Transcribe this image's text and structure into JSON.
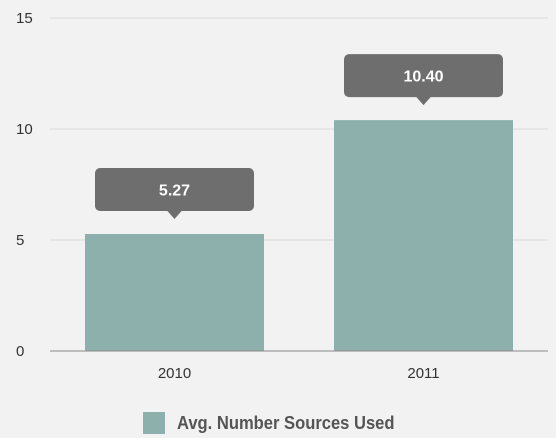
{
  "chart_data": {
    "type": "bar",
    "categories": [
      "2010",
      "2011"
    ],
    "series": [
      {
        "name": "Avg. Number Sources Used",
        "values": [
          5.27,
          10.4
        ]
      }
    ],
    "data_labels": [
      "5.27",
      "10.40"
    ],
    "y_ticks": [
      "0",
      "5",
      "10",
      "15"
    ],
    "ylim": [
      0,
      15
    ],
    "grid": true,
    "legend_position": "bottom-center",
    "title": "",
    "xlabel": "",
    "ylabel": ""
  },
  "colors": {
    "bar": "#8eb0ad",
    "callout": "#6e6e6e",
    "gridline": "#d9d9d9",
    "axis": "#888888",
    "background": "#f2f2f2"
  }
}
